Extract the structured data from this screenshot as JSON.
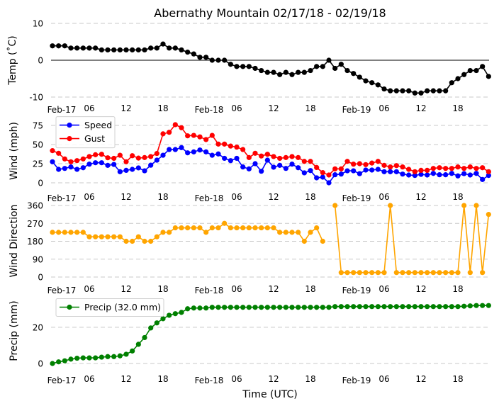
{
  "chart_data": [
    {
      "type": "line",
      "id": "temp",
      "title": "Abernathy Mountain 02/17/18 - 02/19/18",
      "ylabel": "Temp ($^\\circ$C)",
      "ylabel_display": "Temp (˚C)",
      "ylim": [
        -10,
        10
      ],
      "yticks": [
        -10,
        0,
        10
      ],
      "grid": "dashed-horizontal",
      "zero_line": true,
      "x_hours": "0..71 hourly from Feb-17 00 UTC",
      "xticks": [
        "Feb-17",
        "06",
        "12",
        "18",
        "Feb-18",
        "06",
        "12",
        "18",
        "Feb-19",
        "06",
        "12",
        "18"
      ],
      "series": [
        {
          "name": "Temp",
          "color": "#000000",
          "values": [
            3.9,
            3.9,
            3.9,
            3.3,
            3.3,
            3.3,
            3.3,
            3.3,
            2.8,
            2.8,
            2.8,
            2.8,
            2.8,
            2.8,
            2.8,
            2.8,
            3.3,
            3.3,
            4.4,
            3.3,
            3.3,
            2.8,
            2.2,
            1.7,
            0.8,
            0.8,
            0,
            0,
            0,
            -1.1,
            -1.7,
            -1.7,
            -1.7,
            -2.2,
            -2.8,
            -3.3,
            -3.3,
            -3.9,
            -3.3,
            -3.9,
            -3.3,
            -3.3,
            -2.8,
            -1.7,
            -1.7,
            0,
            -2.2,
            -1.1,
            -2.8,
            -3.6,
            -4.6,
            -5.6,
            -6.1,
            -6.7,
            -7.8,
            -8.3,
            -8.3,
            -8.3,
            -8.3,
            -8.9,
            -8.9,
            -8.3,
            -8.3,
            -8.3,
            -8.3,
            -6.1,
            -5.0,
            -3.9,
            -2.8,
            -2.8,
            -1.7,
            -4.4
          ]
        }
      ]
    },
    {
      "type": "line",
      "id": "wind",
      "ylabel": "Wind (mph)",
      "ylim": [
        0,
        80
      ],
      "yticks": [
        0,
        25,
        50,
        75
      ],
      "grid": "dashed-horizontal",
      "legend": "top-left",
      "xticks": [
        "Feb-17",
        "06",
        "12",
        "18",
        "Feb-18",
        "06",
        "12",
        "18",
        "Feb-19",
        "06",
        "12",
        "18"
      ],
      "series": [
        {
          "name": "Speed",
          "color": "#0000ff",
          "values": [
            27.5,
            17.6,
            18.8,
            20.7,
            17.6,
            19.7,
            24.4,
            26.2,
            26.2,
            22.8,
            24,
            14.5,
            16.3,
            17.6,
            19.5,
            15.7,
            23,
            29.6,
            36,
            43.5,
            43.5,
            46,
            39.2,
            40.4,
            42.9,
            40.4,
            36,
            37.7,
            32,
            29,
            32,
            20.7,
            18.2,
            25,
            15.1,
            29.6,
            20.4,
            22.8,
            18.8,
            24.4,
            19.7,
            13,
            16,
            6.5,
            7.4,
            0,
            10.5,
            11.4,
            15.7,
            15.7,
            12,
            16.7,
            16.7,
            17.6,
            14.5,
            14.5,
            14.5,
            11.4,
            10.2,
            9.6,
            11,
            10.2,
            12.3,
            10.5,
            10.5,
            12.3,
            9,
            12,
            10.2,
            12.3,
            4.3,
            9.6
          ]
        },
        {
          "name": "Gust",
          "color": "#ff0000",
          "values": [
            42,
            38.6,
            31.2,
            27.5,
            29,
            31.2,
            34.3,
            36.7,
            37.3,
            32.7,
            32,
            36,
            27.5,
            35.4,
            32.3,
            33,
            34.3,
            38.3,
            64,
            66,
            76,
            72,
            61.4,
            62,
            60,
            56.5,
            62,
            50.6,
            50.6,
            48,
            46.6,
            43.5,
            33,
            38.6,
            35,
            37.3,
            34.3,
            32,
            33,
            34.3,
            33,
            28,
            28,
            20,
            13.3,
            10.2,
            18.2,
            18.2,
            28,
            24.4,
            25,
            23.8,
            25.8,
            28,
            22.8,
            20.7,
            22.5,
            20.7,
            17.6,
            14.5,
            16.3,
            16.3,
            18.8,
            19.7,
            18.8,
            18.8,
            20.7,
            18.8,
            20.7,
            18.8,
            19.7,
            14.5
          ]
        }
      ]
    },
    {
      "type": "line",
      "id": "direction",
      "ylabel": "Wind Direction",
      "ylim": [
        0,
        360
      ],
      "yticks": [
        0,
        90,
        180,
        270,
        360
      ],
      "grid": "dashed-horizontal",
      "xticks": [
        "Feb-17",
        "06",
        "12",
        "18",
        "Feb-18",
        "06",
        "12",
        "18",
        "Feb-19",
        "06",
        "12",
        "18"
      ],
      "series": [
        {
          "name": "Direction",
          "color": "#ffa500",
          "values": [
            225,
            225,
            225,
            225,
            225,
            225,
            202.5,
            202.5,
            202.5,
            202.5,
            202.5,
            202.5,
            180,
            180,
            202.5,
            180,
            180,
            202.5,
            225,
            225,
            247.5,
            247.5,
            247.5,
            247.5,
            247.5,
            225,
            247.5,
            247.5,
            270,
            247.5,
            247.5,
            247.5,
            247.5,
            247.5,
            247.5,
            247.5,
            247.5,
            225,
            225,
            225,
            225,
            180,
            225,
            247.5,
            180,
            null,
            360,
            22.5,
            22.5,
            22.5,
            22.5,
            22.5,
            22.5,
            22.5,
            22.5,
            360,
            22.5,
            22.5,
            22.5,
            22.5,
            22.5,
            22.5,
            22.5,
            22.5,
            22.5,
            22.5,
            22.5,
            360,
            22.5,
            360,
            22.5,
            315
          ]
        }
      ]
    },
    {
      "type": "line",
      "id": "precip",
      "ylabel": "Precip (mm)",
      "xlabel": "Time (UTC)",
      "ylim": [
        0,
        35
      ],
      "yticks": [
        0,
        20
      ],
      "grid": "dashed-horizontal",
      "legend": "top-left",
      "xticks": [
        "Feb-17",
        "06",
        "12",
        "18",
        "Feb-18",
        "06",
        "12",
        "18",
        "Feb-19",
        "06",
        "12",
        "18"
      ],
      "series": [
        {
          "name": "Precip (32.0 mm)",
          "color": "#008000",
          "values": [
            0,
            0.9,
            1.5,
            2.4,
            2.9,
            3.1,
            3.1,
            3.1,
            3.5,
            3.8,
            3.8,
            4.2,
            5.1,
            6.9,
            10.6,
            14.3,
            19.6,
            22.4,
            24.7,
            26.6,
            27.5,
            28.2,
            30.2,
            30.6,
            30.6,
            30.6,
            31.0,
            31.0,
            31.0,
            31.0,
            31.0,
            31.0,
            31.0,
            31.0,
            31.0,
            31.0,
            31.0,
            31.0,
            31.0,
            31.0,
            31.0,
            31.0,
            31.0,
            31.0,
            31.0,
            31.0,
            31.4,
            31.4,
            31.4,
            31.4,
            31.4,
            31.4,
            31.4,
            31.4,
            31.4,
            31.4,
            31.4,
            31.4,
            31.4,
            31.4,
            31.4,
            31.4,
            31.4,
            31.4,
            31.4,
            31.4,
            31.4,
            31.6,
            31.8,
            32.0,
            32.0,
            32.0
          ]
        }
      ]
    }
  ]
}
